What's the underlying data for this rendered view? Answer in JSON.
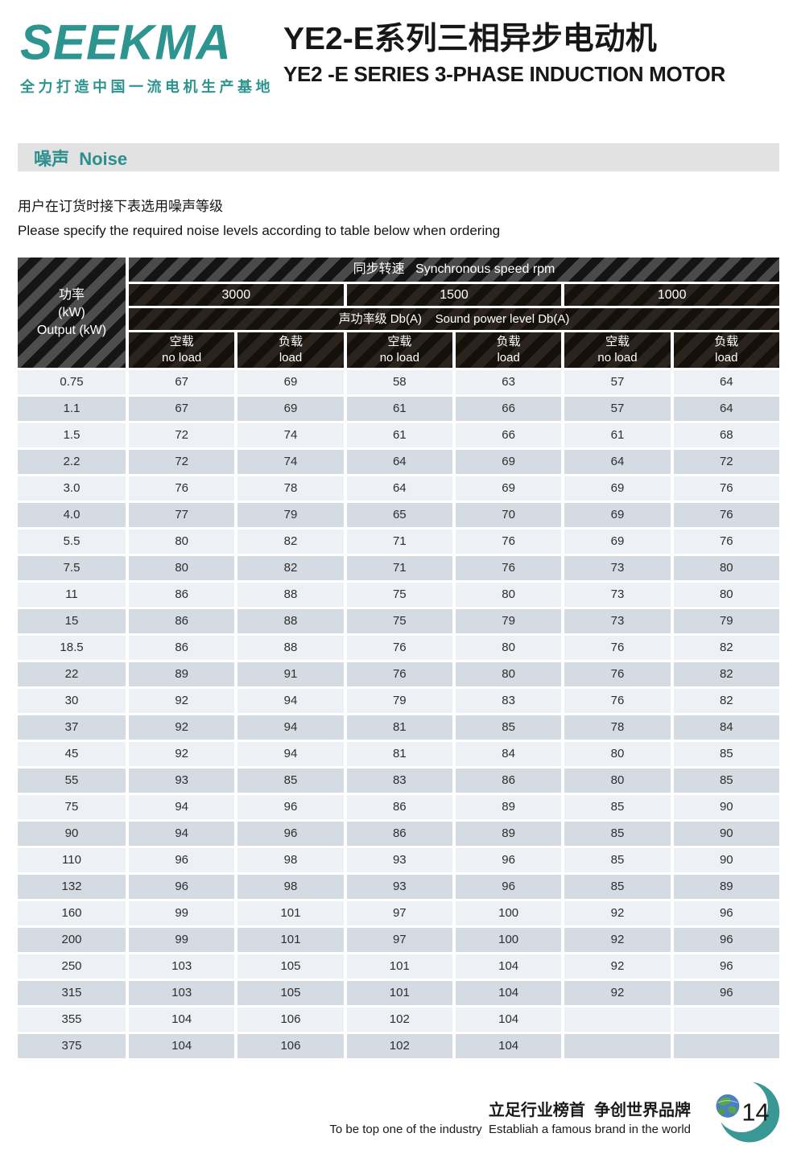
{
  "header": {
    "logo_text": "SEEKMA",
    "logo_tagline": "全力打造中国一流电机生产基地",
    "title_cn": "YE2-E系列三相异步电动机",
    "title_en": "YE2 -E SERIES 3-PHASE INDUCTION MOTOR"
  },
  "section": {
    "heading": "噪声  Noise",
    "note_cn": "用户在订货时接下表选用噪声等级",
    "note_en": "Please specify the required noise levels according to table below when ordering"
  },
  "table": {
    "power_label_lines": [
      "功率",
      "(kW)",
      "Output (kW)"
    ],
    "speed_header": "同步转速   Synchronous speed rpm",
    "speeds": [
      "3000",
      "1500",
      "1000"
    ],
    "sound_header": "声功率级 Db(A)    Sound power level Db(A)",
    "sub_headers": [
      {
        "cn": "空载",
        "en": "no load"
      },
      {
        "cn": "负载",
        "en": "load"
      },
      {
        "cn": "空载",
        "en": "no load"
      },
      {
        "cn": "负载",
        "en": "load"
      },
      {
        "cn": "空载",
        "en": "no load"
      },
      {
        "cn": "负载",
        "en": "load"
      }
    ],
    "rows": [
      {
        "power": "0.75",
        "values": [
          "67",
          "69",
          "58",
          "63",
          "57",
          "64"
        ]
      },
      {
        "power": "1.1",
        "values": [
          "67",
          "69",
          "61",
          "66",
          "57",
          "64"
        ]
      },
      {
        "power": "1.5",
        "values": [
          "72",
          "74",
          "61",
          "66",
          "61",
          "68"
        ]
      },
      {
        "power": "2.2",
        "values": [
          "72",
          "74",
          "64",
          "69",
          "64",
          "72"
        ]
      },
      {
        "power": "3.0",
        "values": [
          "76",
          "78",
          "64",
          "69",
          "69",
          "76"
        ]
      },
      {
        "power": "4.0",
        "values": [
          "77",
          "79",
          "65",
          "70",
          "69",
          "76"
        ]
      },
      {
        "power": "5.5",
        "values": [
          "80",
          "82",
          "71",
          "76",
          "69",
          "76"
        ]
      },
      {
        "power": "7.5",
        "values": [
          "80",
          "82",
          "71",
          "76",
          "73",
          "80"
        ]
      },
      {
        "power": "11",
        "values": [
          "86",
          "88",
          "75",
          "80",
          "73",
          "80"
        ]
      },
      {
        "power": "15",
        "values": [
          "86",
          "88",
          "75",
          "79",
          "73",
          "79"
        ]
      },
      {
        "power": "18.5",
        "values": [
          "86",
          "88",
          "76",
          "80",
          "76",
          "82"
        ]
      },
      {
        "power": "22",
        "values": [
          "89",
          "91",
          "76",
          "80",
          "76",
          "82"
        ]
      },
      {
        "power": "30",
        "values": [
          "92",
          "94",
          "79",
          "83",
          "76",
          "82"
        ]
      },
      {
        "power": "37",
        "values": [
          "92",
          "94",
          "81",
          "85",
          "78",
          "84"
        ]
      },
      {
        "power": "45",
        "values": [
          "92",
          "94",
          "81",
          "84",
          "80",
          "85"
        ]
      },
      {
        "power": "55",
        "values": [
          "93",
          "85",
          "83",
          "86",
          "80",
          "85"
        ]
      },
      {
        "power": "75",
        "values": [
          "94",
          "96",
          "86",
          "89",
          "85",
          "90"
        ]
      },
      {
        "power": "90",
        "values": [
          "94",
          "96",
          "86",
          "89",
          "85",
          "90"
        ]
      },
      {
        "power": "110",
        "values": [
          "96",
          "98",
          "93",
          "96",
          "85",
          "90"
        ]
      },
      {
        "power": "132",
        "values": [
          "96",
          "98",
          "93",
          "96",
          "85",
          "89"
        ]
      },
      {
        "power": "160",
        "values": [
          "99",
          "101",
          "97",
          "100",
          "92",
          "96"
        ]
      },
      {
        "power": "200",
        "values": [
          "99",
          "101",
          "97",
          "100",
          "92",
          "96"
        ]
      },
      {
        "power": "250",
        "values": [
          "103",
          "105",
          "101",
          "104",
          "92",
          "96"
        ]
      },
      {
        "power": "315",
        "values": [
          "103",
          "105",
          "101",
          "104",
          "92",
          "96"
        ]
      },
      {
        "power": "355",
        "values": [
          "104",
          "106",
          "102",
          "104",
          "",
          ""
        ]
      },
      {
        "power": "375",
        "values": [
          "104",
          "106",
          "102",
          "104",
          "",
          ""
        ]
      }
    ]
  },
  "footer": {
    "slogan_cn": "立足行业榜首  争创世界品牌",
    "slogan_en": "To be top one of the industry  Establiah a famous brand in the world",
    "page_number": "14"
  },
  "colors": {
    "brand_teal": "#2e948f",
    "section_bar_bg": "#e2e2e2",
    "row_light": "#edf1f5",
    "row_dark": "#d5dbe3",
    "header_dark": "#14100c"
  }
}
